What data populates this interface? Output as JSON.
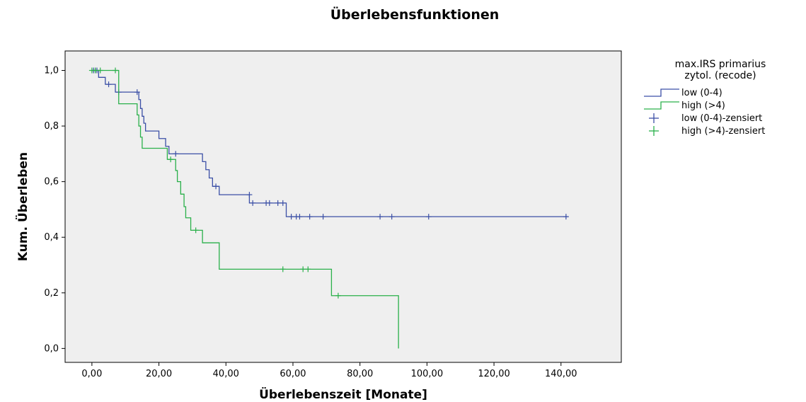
{
  "chart_data": {
    "type": "line",
    "subtype": "kaplan-meier-survival",
    "title": "Überlebensfunktionen",
    "xlabel": "Überlebenszeit [Monate]",
    "ylabel": "Kum. Überleben",
    "xlim": [
      -8,
      158
    ],
    "ylim": [
      -0.05,
      1.07
    ],
    "xticks": [
      0,
      20,
      40,
      60,
      80,
      100,
      120,
      140
    ],
    "xtick_labels": [
      "0,00",
      "20,00",
      "40,00",
      "60,00",
      "80,00",
      "100,00",
      "120,00",
      "140,00"
    ],
    "yticks": [
      0.0,
      0.2,
      0.4,
      0.6,
      0.8,
      1.0
    ],
    "ytick_labels": [
      "0,0",
      "0,2",
      "0,4",
      "0,6",
      "0,8",
      "1,0"
    ],
    "background": "#efefef",
    "legend": {
      "title": "max.IRS primarius zytol. (recode)",
      "title_lines": [
        "max.IRS primarius",
        "zytol. (recode)"
      ],
      "placement": "right",
      "entries": [
        {
          "label": "low (0-4)",
          "kind": "step",
          "series": 0
        },
        {
          "label": "high (>4)",
          "kind": "step",
          "series": 1
        },
        {
          "label": "low (0-4)-zensiert",
          "kind": "censor",
          "series": 0
        },
        {
          "label": "high (>4)-zensiert",
          "kind": "censor",
          "series": 1
        }
      ]
    },
    "series": [
      {
        "name": "low (0-4)",
        "color": "#3b4fa6",
        "steps": [
          [
            0,
            1.0
          ],
          [
            2,
            0.975
          ],
          [
            4,
            0.95
          ],
          [
            7,
            0.922
          ],
          [
            14,
            0.895
          ],
          [
            14.5,
            0.863
          ],
          [
            15,
            0.835
          ],
          [
            15.5,
            0.81
          ],
          [
            16,
            0.782
          ],
          [
            20,
            0.755
          ],
          [
            22,
            0.727
          ],
          [
            23,
            0.7
          ],
          [
            33,
            0.672
          ],
          [
            34,
            0.643
          ],
          [
            35,
            0.613
          ],
          [
            36,
            0.583
          ],
          [
            38,
            0.553
          ],
          [
            47,
            0.523
          ],
          [
            58,
            0.474
          ]
        ],
        "end_x": 142,
        "censored": [
          [
            0.5,
            1.0
          ],
          [
            1,
            1.0
          ],
          [
            1.5,
            1.0
          ],
          [
            5,
            0.95
          ],
          [
            8,
            0.922
          ],
          [
            13.5,
            0.922
          ],
          [
            25,
            0.7
          ],
          [
            37,
            0.583
          ],
          [
            47,
            0.553
          ],
          [
            48,
            0.523
          ],
          [
            52,
            0.523
          ],
          [
            53,
            0.523
          ],
          [
            55.5,
            0.523
          ],
          [
            57,
            0.523
          ],
          [
            59.5,
            0.474
          ],
          [
            61,
            0.474
          ],
          [
            62,
            0.474
          ],
          [
            65,
            0.474
          ],
          [
            69,
            0.474
          ],
          [
            86,
            0.474
          ],
          [
            89.5,
            0.474
          ],
          [
            100.5,
            0.474
          ],
          [
            141.5,
            0.474
          ]
        ]
      },
      {
        "name": "high (>4)",
        "color": "#2ab04a",
        "steps": [
          [
            0,
            1.0
          ],
          [
            8,
            0.88
          ],
          [
            13.5,
            0.84
          ],
          [
            14,
            0.8
          ],
          [
            14.5,
            0.76
          ],
          [
            15,
            0.72
          ],
          [
            22.5,
            0.68
          ],
          [
            25,
            0.64
          ],
          [
            25.5,
            0.6
          ],
          [
            26.5,
            0.555
          ],
          [
            27.5,
            0.51
          ],
          [
            28,
            0.47
          ],
          [
            29.5,
            0.425
          ],
          [
            33,
            0.38
          ],
          [
            38,
            0.285
          ],
          [
            71.5,
            0.19
          ],
          [
            91.5,
            0.0
          ]
        ],
        "end_x": 91.5,
        "censored": [
          [
            0,
            1.0
          ],
          [
            1,
            1.0
          ],
          [
            2.5,
            1.0
          ],
          [
            7,
            1.0
          ],
          [
            23.5,
            0.68
          ],
          [
            31,
            0.425
          ],
          [
            57,
            0.285
          ],
          [
            63,
            0.285
          ],
          [
            64.5,
            0.285
          ],
          [
            73.5,
            0.19
          ]
        ]
      }
    ]
  }
}
